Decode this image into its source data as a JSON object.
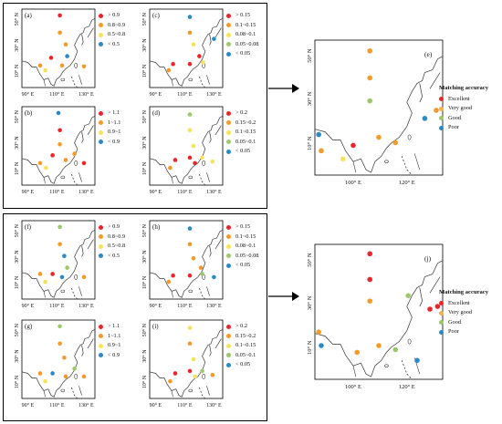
{
  "colors": {
    "red": "#e8272b",
    "orange": "#f39a2a",
    "yellow": "#f7e35a",
    "green": "#9dc86a",
    "blue": "#2a8ac8",
    "lightorange": "#f6b24a"
  },
  "axis_labels": {
    "lat_small": [
      "50° N",
      "30° N",
      "10° N"
    ],
    "lon_small": [
      "90° E",
      "110° E",
      "130° E"
    ],
    "lat_large": [
      "50° N",
      "30° N",
      "10° N"
    ],
    "lon_large": [
      "100° E",
      "120° E"
    ]
  },
  "legend_sets": {
    "a": [
      "> 0.9",
      "0.8~0.9",
      "0.5~0.8",
      "< 0.5"
    ],
    "b": [
      "> 1.1",
      "1~1.1",
      "0.9~1",
      "< 0.9"
    ],
    "c": [
      "> 0.15",
      "0.1~0.15",
      "0.08~0.1",
      "0.05~0.08",
      "< 0.05"
    ],
    "d": [
      "> 0.2",
      "0.15~0.2",
      "0.1~0.15",
      "0.05~0.1",
      "< 0.05"
    ]
  },
  "matching_legend": {
    "title": "Matching accuracy",
    "items": [
      "Excellent",
      "Very good",
      "Good",
      "Poor"
    ]
  },
  "panels": [
    {
      "id": "a",
      "label": "(a)",
      "legend": "a",
      "dots": [
        [
          "red",
          0.52,
          0.08
        ],
        [
          "orange",
          0.52,
          0.3
        ],
        [
          "orange",
          0.6,
          0.45
        ],
        [
          "red",
          0.4,
          0.62
        ],
        [
          "orange",
          0.25,
          0.72
        ],
        [
          "orange",
          0.55,
          0.72
        ],
        [
          "orange",
          0.85,
          0.73
        ],
        [
          "yellow",
          0.32,
          0.78
        ],
        [
          "blue",
          0.62,
          0.6
        ]
      ]
    },
    {
      "id": "b",
      "label": "(b)",
      "legend": "b",
      "dots": [
        [
          "blue",
          0.5,
          0.08
        ],
        [
          "red",
          0.52,
          0.3
        ],
        [
          "orange",
          0.52,
          0.48
        ],
        [
          "orange",
          0.25,
          0.72
        ],
        [
          "red",
          0.42,
          0.62
        ],
        [
          "orange",
          0.6,
          0.68
        ],
        [
          "red",
          0.85,
          0.72
        ],
        [
          "yellow",
          0.33,
          0.78
        ],
        [
          "orange",
          0.72,
          0.6
        ]
      ]
    },
    {
      "id": "c",
      "label": "(c)",
      "legend": "c",
      "dots": [
        [
          "blue",
          0.55,
          0.1
        ],
        [
          "orange",
          0.55,
          0.3
        ],
        [
          "yellow",
          0.6,
          0.45
        ],
        [
          "blue",
          0.88,
          0.38
        ],
        [
          "red",
          0.32,
          0.7
        ],
        [
          "red",
          0.55,
          0.7
        ],
        [
          "yellow",
          0.73,
          0.68
        ],
        [
          "orange",
          0.26,
          0.78
        ],
        [
          "red",
          0.68,
          0.6
        ]
      ]
    },
    {
      "id": "d",
      "label": "(d)",
      "legend": "d",
      "dots": [
        [
          "green",
          0.55,
          0.1
        ],
        [
          "yellow",
          0.55,
          0.3
        ],
        [
          "yellow",
          0.6,
          0.5
        ],
        [
          "red",
          0.35,
          0.68
        ],
        [
          "red",
          0.55,
          0.65
        ],
        [
          "red",
          0.62,
          0.72
        ],
        [
          "orange",
          0.28,
          0.78
        ],
        [
          "yellow",
          0.72,
          0.65
        ],
        [
          "yellow",
          0.86,
          0.7
        ]
      ]
    },
    {
      "id": "f",
      "label": "(f)",
      "legend": "a",
      "dots": [
        [
          "green",
          0.52,
          0.08
        ],
        [
          "orange",
          0.52,
          0.3
        ],
        [
          "blue",
          0.58,
          0.45
        ],
        [
          "orange",
          0.25,
          0.68
        ],
        [
          "red",
          0.42,
          0.68
        ],
        [
          "blue",
          0.55,
          0.72
        ],
        [
          "yellow",
          0.32,
          0.78
        ],
        [
          "orange",
          0.85,
          0.72
        ],
        [
          "green",
          0.62,
          0.6
        ]
      ]
    },
    {
      "id": "g",
      "label": "(g)",
      "legend": "b",
      "dots": [
        [
          "green",
          0.52,
          0.08
        ],
        [
          "orange",
          0.52,
          0.3
        ],
        [
          "orange",
          0.58,
          0.48
        ],
        [
          "orange",
          0.25,
          0.68
        ],
        [
          "blue",
          0.42,
          0.68
        ],
        [
          "orange",
          0.6,
          0.72
        ],
        [
          "yellow",
          0.32,
          0.78
        ],
        [
          "orange",
          0.85,
          0.72
        ],
        [
          "green",
          0.72,
          0.62
        ]
      ]
    },
    {
      "id": "h",
      "label": "(h)",
      "legend": "c",
      "dots": [
        [
          "blue",
          0.55,
          0.1
        ],
        [
          "orange",
          0.55,
          0.3
        ],
        [
          "orange",
          0.6,
          0.48
        ],
        [
          "red",
          0.32,
          0.7
        ],
        [
          "red",
          0.55,
          0.7
        ],
        [
          "green",
          0.72,
          0.68
        ],
        [
          "orange",
          0.26,
          0.78
        ],
        [
          "blue",
          0.88,
          0.72
        ],
        [
          "orange",
          0.7,
          0.6
        ]
      ]
    },
    {
      "id": "i",
      "label": "(i)",
      "legend": "d",
      "dots": [
        [
          "yellow",
          0.55,
          0.1
        ],
        [
          "orange",
          0.55,
          0.3
        ],
        [
          "yellow",
          0.6,
          0.5
        ],
        [
          "red",
          0.35,
          0.68
        ],
        [
          "red",
          0.55,
          0.65
        ],
        [
          "yellow",
          0.62,
          0.72
        ],
        [
          "orange",
          0.28,
          0.78
        ],
        [
          "green",
          0.72,
          0.65
        ],
        [
          "orange",
          0.86,
          0.7
        ]
      ]
    }
  ],
  "summary_panels": [
    {
      "id": "e",
      "label": "(e)",
      "dots": [
        [
          "orange",
          0.43,
          0.08
        ],
        [
          "orange",
          0.43,
          0.28
        ],
        [
          "green",
          0.43,
          0.45
        ],
        [
          "blue",
          0.03,
          0.7
        ],
        [
          "orange",
          0.05,
          0.82
        ],
        [
          "red",
          0.3,
          0.78
        ],
        [
          "orange",
          0.5,
          0.72
        ],
        [
          "orange",
          0.63,
          0.76
        ],
        [
          "blue",
          0.86,
          0.58
        ],
        [
          "orange",
          0.95,
          0.52
        ],
        [
          "yellow",
          0.22,
          0.88
        ]
      ]
    },
    {
      "id": "j",
      "label": "(j)",
      "dots": [
        [
          "red",
          0.43,
          0.07
        ],
        [
          "red",
          0.43,
          0.26
        ],
        [
          "orange",
          0.43,
          0.42
        ],
        [
          "orange",
          0.03,
          0.65
        ],
        [
          "blue",
          0.05,
          0.75
        ],
        [
          "orange",
          0.33,
          0.8
        ],
        [
          "orange",
          0.5,
          0.75
        ],
        [
          "green",
          0.73,
          0.38
        ],
        [
          "red",
          0.9,
          0.48
        ],
        [
          "red",
          0.96,
          0.46
        ],
        [
          "blue",
          0.8,
          0.86
        ],
        [
          "green",
          0.63,
          0.78
        ]
      ]
    }
  ]
}
